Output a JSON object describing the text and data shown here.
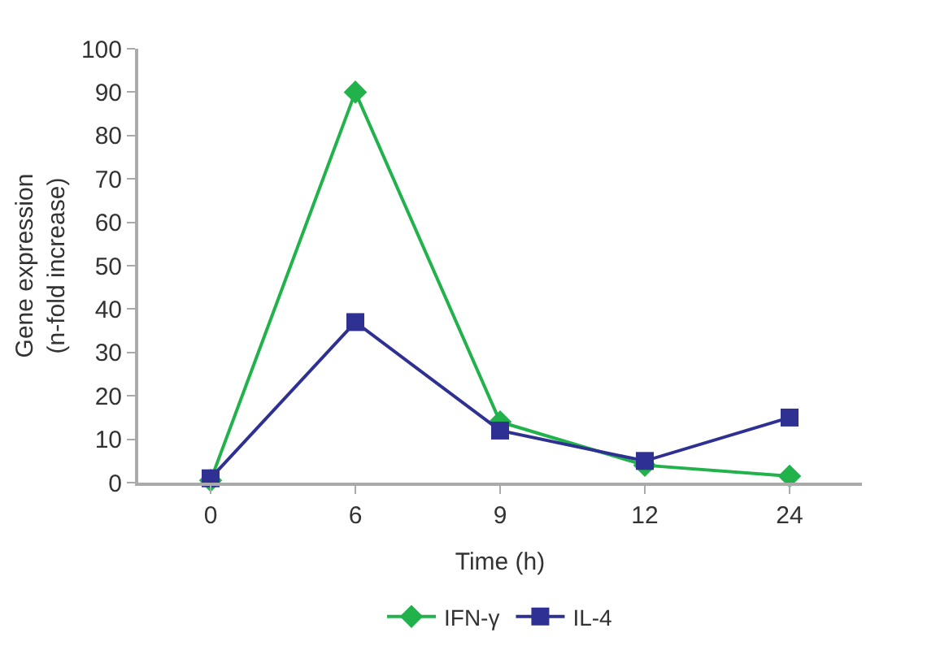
{
  "chart_data": {
    "type": "line",
    "xlabel": "Time (h)",
    "ylabel": "Gene expression\n(n-fold increase)",
    "categories": [
      "0",
      "6",
      "9",
      "12",
      "24"
    ],
    "series": [
      {
        "name": "IFN-γ",
        "color": "#22b24c",
        "marker": "diamond",
        "values": [
          0.5,
          90,
          14,
          4,
          1.5
        ]
      },
      {
        "name": "IL-4",
        "color": "#2e3192",
        "marker": "square",
        "values": [
          1,
          37,
          12,
          5,
          15
        ]
      }
    ],
    "ylim": [
      0,
      100
    ],
    "yticks": [
      0,
      10,
      20,
      30,
      40,
      50,
      60,
      70,
      80,
      90,
      100
    ],
    "legend": "bottom",
    "line_style": "solid"
  }
}
